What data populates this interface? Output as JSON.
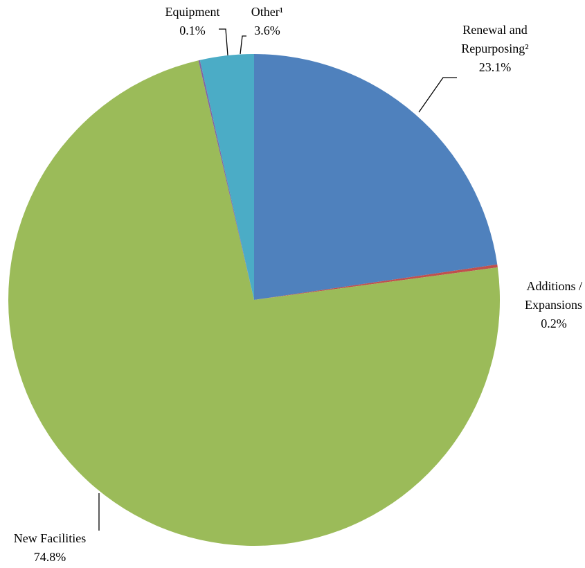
{
  "chart_data": {
    "type": "pie",
    "categories": [
      "Renewal and Repurposing²",
      "Additions / Expansions",
      "New Facilities",
      "Equipment",
      "Other¹"
    ],
    "values": [
      23.1,
      0.2,
      74.8,
      0.1,
      3.6
    ],
    "value_labels": [
      "23.1%",
      "0.2%",
      "74.8%",
      "0.1%",
      "3.6%"
    ],
    "colors": [
      "#4f81bd",
      "#c0504d",
      "#9bbb59",
      "#8064a2",
      "#4bacc6"
    ]
  }
}
